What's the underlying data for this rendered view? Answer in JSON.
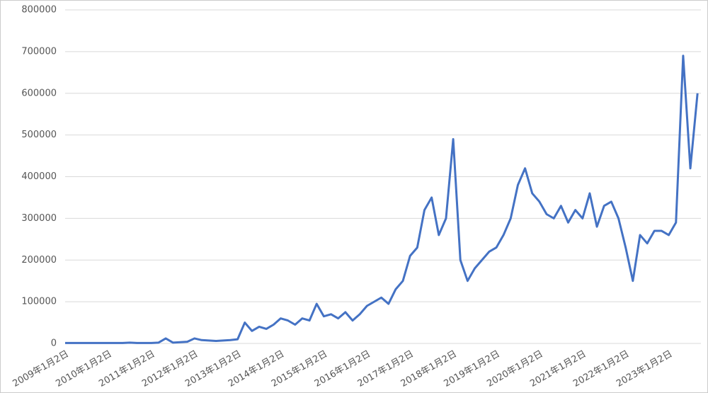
{
  "chart_data": {
    "type": "line",
    "categories": [
      "2009年1月2日",
      null,
      null,
      null,
      null,
      null,
      "2010年1月2日",
      null,
      null,
      null,
      null,
      null,
      "2011年1月2日",
      null,
      null,
      null,
      null,
      null,
      "2012年1月2日",
      null,
      null,
      null,
      null,
      null,
      "2013年1月2日",
      null,
      null,
      null,
      null,
      null,
      "2014年1月2日",
      null,
      null,
      null,
      null,
      null,
      "2015年1月2日",
      null,
      null,
      null,
      null,
      null,
      "2016年1月2日",
      null,
      null,
      null,
      null,
      null,
      "2017年1月2日",
      null,
      null,
      null,
      null,
      null,
      "2018年1月2日",
      null,
      null,
      null,
      null,
      null,
      "2019年1月2日",
      null,
      null,
      null,
      null,
      null,
      "2020年1月2日",
      null,
      null,
      null,
      null,
      null,
      "2021年1月2日",
      null,
      null,
      null,
      null,
      null,
      "2022年1月2日",
      null,
      null,
      null,
      null,
      null,
      "2023年1月2日",
      null,
      null,
      null,
      null
    ],
    "series": [
      {
        "color": "#4472c4",
        "values": [
          1000,
          1000,
          1000,
          1000,
          1000,
          1000,
          1000,
          1000,
          1000,
          2000,
          1000,
          1000,
          1000,
          2000,
          12000,
          2000,
          3000,
          4000,
          12000,
          8000,
          7000,
          6000,
          7000,
          8000,
          10000,
          50000,
          30000,
          40000,
          35000,
          45000,
          60000,
          55000,
          45000,
          60000,
          55000,
          95000,
          65000,
          70000,
          60000,
          75000,
          55000,
          70000,
          90000,
          100000,
          110000,
          95000,
          130000,
          150000,
          210000,
          230000,
          320000,
          350000,
          260000,
          300000,
          490000,
          200000,
          150000,
          180000,
          200000,
          220000,
          230000,
          260000,
          300000,
          380000,
          420000,
          360000,
          340000,
          310000,
          300000,
          330000,
          290000,
          320000,
          300000,
          360000,
          280000,
          330000,
          340000,
          300000,
          230000,
          150000,
          260000,
          240000,
          270000,
          270000,
          260000,
          290000,
          690000,
          420000,
          600000
        ]
      }
    ],
    "ylim": [
      0,
      800000
    ],
    "yticks": [
      0,
      100000,
      200000,
      300000,
      400000,
      500000,
      600000,
      700000,
      800000
    ],
    "grid": true
  }
}
